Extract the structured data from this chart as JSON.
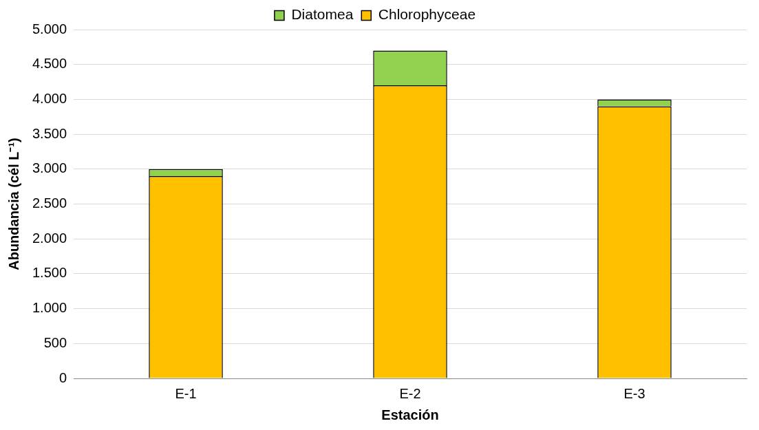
{
  "chart_data": {
    "type": "bar",
    "stacked": true,
    "xlabel": "Estación",
    "ylabel": "Abundancia (cél L⁻¹)",
    "categories": [
      "E-1",
      "E-2",
      "E-3"
    ],
    "series": [
      {
        "name": "Chlorophyceae",
        "color": "#ffc000",
        "values": [
          2900,
          4200,
          3900
        ]
      },
      {
        "name": "Diatomea",
        "color": "#92d050",
        "values": [
          100,
          500,
          100
        ]
      }
    ],
    "ylim": [
      0,
      5000
    ],
    "yticks": [
      0,
      500,
      {
        "value": 1000,
        "label": "1.000"
      },
      {
        "value": 1500,
        "label": "1.500"
      },
      {
        "value": 2000,
        "label": "2.000"
      },
      {
        "value": 2500,
        "label": "2.500"
      },
      {
        "value": 3000,
        "label": "3.000"
      },
      {
        "value": 3500,
        "label": "3.500"
      },
      {
        "value": 4000,
        "label": "4.000"
      },
      {
        "value": 4500,
        "label": "4.500"
      },
      {
        "value": 5000,
        "label": "5.000"
      }
    ],
    "grid": "y",
    "legend": "top"
  }
}
